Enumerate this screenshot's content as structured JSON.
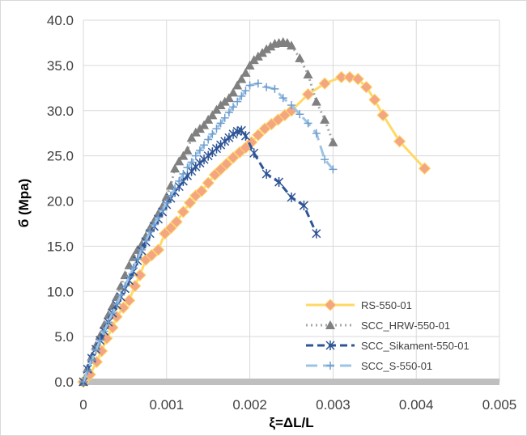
{
  "chart_data": {
    "type": "line",
    "title": "",
    "xlabel": "ξ=ΔL/L",
    "ylabel": "б (Mpa)",
    "xlim": [
      0,
      0.005
    ],
    "ylim": [
      0,
      40
    ],
    "x_ticks": [
      "0",
      "0.001",
      "0.002",
      "0.003",
      "0.004",
      "0.005"
    ],
    "y_ticks": [
      "0.0",
      "5.0",
      "10.0",
      "15.0",
      "20.0",
      "25.0",
      "30.0",
      "35.0",
      "40.0"
    ],
    "grid": true,
    "legend_position": "bottom-right",
    "series": [
      {
        "name": "RS-550-01",
        "color": "#FFD966",
        "marker": "diamond",
        "marker_color": "#F4A582",
        "line_style": "solid",
        "x": [
          0,
          8e-05,
          0.00016,
          0.00022,
          0.00028,
          0.00035,
          0.0004,
          0.00048,
          0.00055,
          0.00062,
          0.00068,
          0.00075,
          0.00082,
          0.0009,
          0.00098,
          0.00105,
          0.00112,
          0.0012,
          0.00128,
          0.00135,
          0.00142,
          0.0015,
          0.00158,
          0.00165,
          0.00172,
          0.0018,
          0.00188,
          0.00195,
          0.00202,
          0.0021,
          0.00218,
          0.00226,
          0.00234,
          0.00242,
          0.0025,
          0.0027,
          0.0029,
          0.0031,
          0.0032,
          0.0033,
          0.0034,
          0.0035,
          0.0036,
          0.0038,
          0.0041
        ],
        "y": [
          0,
          0.8,
          2.2,
          3.4,
          4.8,
          6.0,
          7.2,
          8.2,
          9.0,
          10.6,
          11.8,
          13.5,
          14.0,
          14.6,
          16.4,
          17.0,
          17.7,
          18.8,
          19.8,
          20.6,
          21.1,
          22.0,
          22.9,
          23.5,
          24.1,
          24.8,
          25.4,
          25.9,
          26.5,
          27.3,
          28.0,
          28.5,
          29.0,
          29.5,
          30.0,
          31.8,
          33.0,
          33.7,
          33.7,
          33.5,
          32.6,
          31.2,
          29.5,
          26.6,
          23.6
        ]
      },
      {
        "name": "SCC_HRW-550-01",
        "color": "#A6A6A6",
        "marker": "triangle",
        "marker_color": "#808080",
        "line_style": "dotted",
        "x": [
          0,
          5e-05,
          0.0001,
          0.00015,
          0.0002,
          0.00025,
          0.0003,
          0.00035,
          0.0004,
          0.00045,
          0.0005,
          0.00055,
          0.0006,
          0.00065,
          0.0007,
          0.00075,
          0.0008,
          0.00085,
          0.0009,
          0.00095,
          0.001,
          0.00105,
          0.0011,
          0.00115,
          0.0012,
          0.00125,
          0.0013,
          0.00135,
          0.0014,
          0.00145,
          0.0015,
          0.00155,
          0.0016,
          0.00165,
          0.0017,
          0.00175,
          0.0018,
          0.00185,
          0.0019,
          0.00195,
          0.002,
          0.00205,
          0.0021,
          0.00215,
          0.0022,
          0.00225,
          0.0023,
          0.00235,
          0.0024,
          0.00245,
          0.0025,
          0.0026,
          0.0027,
          0.0028,
          0.0029,
          0.003
        ],
        "y": [
          0,
          1.5,
          2.8,
          4.0,
          5.1,
          6.3,
          7.4,
          8.4,
          9.4,
          10.6,
          11.8,
          12.9,
          13.8,
          14.6,
          15.2,
          16.1,
          17.0,
          17.8,
          18.6,
          19.4,
          20.5,
          21.7,
          23.6,
          24.4,
          25.0,
          25.6,
          27.0,
          27.6,
          28.0,
          28.4,
          29.0,
          29.5,
          30.1,
          30.6,
          31.0,
          31.4,
          32.0,
          32.8,
          33.5,
          34.2,
          35.0,
          35.6,
          36.0,
          36.4,
          36.8,
          37.1,
          37.4,
          37.5,
          37.6,
          37.5,
          37.2,
          35.8,
          34.0,
          31.0,
          29.0,
          26.5
        ]
      },
      {
        "name": "SCC_Sikament-550-01",
        "color": "#2F5597",
        "marker": "asterisk",
        "marker_color": "#2F5597",
        "line_style": "dashed",
        "x": [
          0,
          5e-05,
          0.0001,
          0.00015,
          0.0002,
          0.00025,
          0.0003,
          0.00035,
          0.0004,
          0.00045,
          0.0005,
          0.00055,
          0.0006,
          0.00065,
          0.0007,
          0.00075,
          0.0008,
          0.00085,
          0.0009,
          0.00095,
          0.001,
          0.00105,
          0.0011,
          0.00115,
          0.0012,
          0.00125,
          0.0013,
          0.00135,
          0.0014,
          0.00145,
          0.0015,
          0.00155,
          0.0016,
          0.00165,
          0.0017,
          0.00175,
          0.0018,
          0.00185,
          0.0019,
          0.00195,
          0.00205,
          0.0022,
          0.00235,
          0.0025,
          0.00265,
          0.0028
        ],
        "y": [
          0,
          1.4,
          2.6,
          3.6,
          4.6,
          5.6,
          6.6,
          7.6,
          8.5,
          9.4,
          10.3,
          11.2,
          12.2,
          13.4,
          14.5,
          15.5,
          16.4,
          17.2,
          18.0,
          18.8,
          19.6,
          20.3,
          21.0,
          21.6,
          22.2,
          22.8,
          23.3,
          23.8,
          24.2,
          24.6,
          25.0,
          25.4,
          25.8,
          26.2,
          26.6,
          27.0,
          27.4,
          27.7,
          27.8,
          27.2,
          25.3,
          23.0,
          22.1,
          20.4,
          19.5,
          16.4
        ]
      },
      {
        "name": "SCC_S-550-01",
        "color": "#9DC3E6",
        "marker": "cross",
        "marker_color": "#6F9FCF",
        "line_style": "longdash",
        "x": [
          0,
          5e-05,
          0.0001,
          0.00015,
          0.0002,
          0.00025,
          0.0003,
          0.00035,
          0.0004,
          0.00045,
          0.0005,
          0.00055,
          0.0006,
          0.00065,
          0.0007,
          0.00075,
          0.0008,
          0.00085,
          0.0009,
          0.00095,
          0.001,
          0.00105,
          0.0011,
          0.00115,
          0.0012,
          0.00125,
          0.0013,
          0.00135,
          0.0014,
          0.00145,
          0.0015,
          0.00155,
          0.0016,
          0.00165,
          0.0017,
          0.00175,
          0.0018,
          0.00185,
          0.0019,
          0.00195,
          0.002,
          0.0021,
          0.0022,
          0.0023,
          0.0024,
          0.0025,
          0.0026,
          0.0027,
          0.0028,
          0.0029,
          0.003
        ],
        "y": [
          0,
          1.2,
          2.4,
          3.5,
          4.6,
          5.6,
          6.6,
          7.6,
          8.6,
          9.6,
          10.6,
          11.6,
          12.6,
          13.6,
          14.6,
          15.6,
          16.6,
          17.4,
          18.2,
          19.0,
          19.8,
          20.6,
          21.4,
          22.2,
          23.0,
          23.7,
          24.3,
          25.0,
          25.6,
          26.2,
          26.8,
          27.4,
          28.0,
          28.6,
          29.2,
          29.8,
          30.4,
          31.0,
          31.6,
          32.2,
          32.8,
          33.0,
          32.6,
          32.4,
          31.4,
          30.6,
          29.6,
          28.6,
          27.5,
          24.6,
          23.5
        ]
      }
    ]
  }
}
